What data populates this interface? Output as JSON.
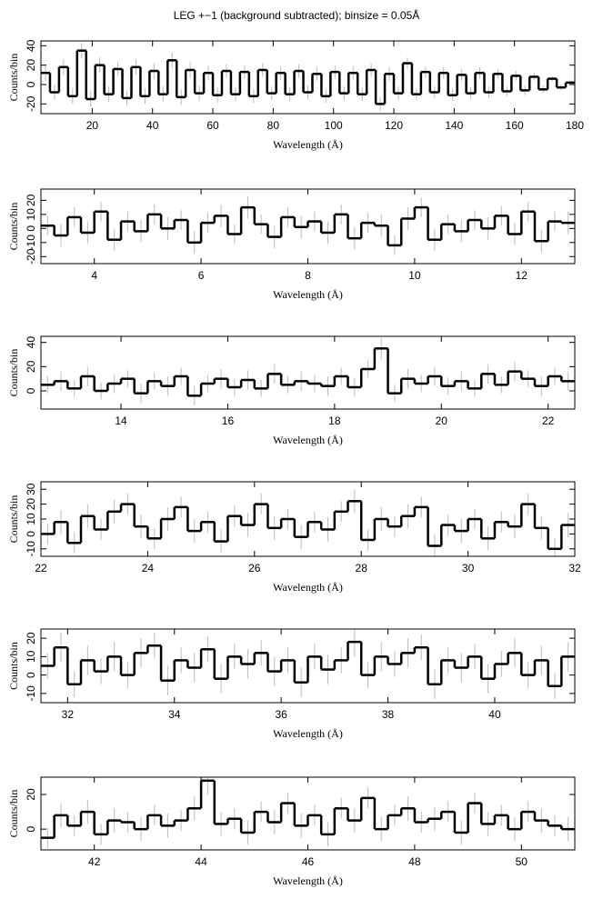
{
  "chart_data": [
    {
      "type": "histogram",
      "title": "LEG +−1 (background subtracted); binsize = 0.05Å",
      "xlabel": "Wavelength (Å)",
      "ylabel": "Counts/bin",
      "color": "#000000",
      "error_color": "#bbbbbb",
      "bins": [
        3,
        6,
        9,
        12,
        15,
        18,
        21,
        24,
        27,
        30,
        33,
        36,
        39,
        42,
        45,
        48,
        51,
        54,
        57,
        60,
        63,
        66,
        69,
        72,
        75,
        78,
        81,
        84,
        87,
        90,
        93,
        96,
        99,
        102,
        105,
        108,
        111,
        114,
        117,
        120,
        123,
        126,
        129,
        132,
        135,
        138,
        141,
        144,
        147,
        150,
        153,
        156,
        159,
        162,
        165,
        168,
        171,
        174,
        177,
        180
      ],
      "values": [
        12,
        -8,
        18,
        -12,
        35,
        -15,
        20,
        -10,
        16,
        -14,
        18,
        -12,
        14,
        -10,
        25,
        -13,
        15,
        -9,
        12,
        -11,
        14,
        -10,
        13,
        -12,
        15,
        -9,
        12,
        -10,
        14,
        -8,
        11,
        -12,
        13,
        -9,
        12,
        -10,
        15,
        -20,
        11,
        -9,
        22,
        -10,
        13,
        -8,
        12,
        -11,
        10,
        -9,
        12,
        -8,
        11,
        -7,
        9,
        -6,
        8,
        -5,
        6,
        -3,
        2
      ],
      "errors": [
        8,
        8,
        8,
        8,
        8,
        8,
        8,
        8,
        8,
        8,
        8,
        8,
        8,
        8,
        8,
        8,
        8,
        8,
        8,
        8,
        7,
        7,
        7,
        7,
        7,
        7,
        7,
        7,
        7,
        7,
        7,
        7,
        7,
        7,
        7,
        7,
        7,
        7,
        7,
        7,
        6,
        6,
        6,
        6,
        6,
        6,
        6,
        6,
        6,
        6,
        5,
        5,
        5,
        5,
        4,
        4,
        3,
        3,
        2
      ],
      "xlim": [
        3,
        180
      ],
      "ylim": [
        -30,
        45
      ],
      "xticks": [
        20,
        40,
        60,
        80,
        100,
        120,
        140,
        160,
        180
      ],
      "yticks": [
        -20,
        0,
        20,
        40
      ]
    },
    {
      "type": "histogram",
      "xlabel": "Wavelength (Å)",
      "ylabel": "Counts/bin",
      "color": "#000000",
      "error_color": "#bbbbbb",
      "bins": [
        3,
        3.25,
        3.5,
        3.75,
        4,
        4.25,
        4.5,
        4.75,
        5,
        5.25,
        5.5,
        5.75,
        6,
        6.25,
        6.5,
        6.75,
        7,
        7.25,
        7.5,
        7.75,
        8,
        8.25,
        8.5,
        8.75,
        9,
        9.25,
        9.5,
        9.75,
        10,
        10.25,
        10.5,
        10.75,
        11,
        11.25,
        11.5,
        11.75,
        12,
        12.25,
        12.5,
        12.75,
        13
      ],
      "values": [
        2,
        -5,
        8,
        -3,
        12,
        -8,
        5,
        -2,
        10,
        0,
        6,
        -10,
        4,
        9,
        -4,
        15,
        3,
        -6,
        8,
        1,
        5,
        -3,
        10,
        -7,
        4,
        2,
        -12,
        7,
        15,
        -8,
        3,
        -2,
        6,
        0,
        9,
        -4,
        12,
        -9,
        5,
        4
      ],
      "errors": [
        7,
        8,
        7,
        8,
        7,
        8,
        7,
        8,
        7,
        8,
        7,
        8,
        7,
        8,
        7,
        8,
        7,
        8,
        7,
        8,
        7,
        8,
        7,
        8,
        7,
        8,
        7,
        8,
        7,
        8,
        7,
        8,
        7,
        8,
        7,
        8,
        7,
        8,
        7,
        8
      ],
      "xlim": [
        3,
        13
      ],
      "ylim": [
        -25,
        28
      ],
      "xticks": [
        4,
        6,
        8,
        10,
        12
      ],
      "yticks": [
        -20,
        -10,
        0,
        10,
        20
      ]
    },
    {
      "type": "histogram",
      "xlabel": "Wavelength (Å)",
      "ylabel": "Counts/bin",
      "color": "#000000",
      "error_color": "#bbbbbb",
      "bins": [
        12.5,
        12.75,
        13,
        13.25,
        13.5,
        13.75,
        14,
        14.25,
        14.5,
        14.75,
        15,
        15.25,
        15.5,
        15.75,
        16,
        16.25,
        16.5,
        16.75,
        17,
        17.25,
        17.5,
        17.75,
        18,
        18.25,
        18.5,
        18.75,
        19,
        19.25,
        19.5,
        19.75,
        20,
        20.25,
        20.5,
        20.75,
        21,
        21.25,
        21.5,
        21.75,
        22,
        22.25,
        22.5
      ],
      "values": [
        5,
        8,
        2,
        12,
        0,
        6,
        10,
        -2,
        8,
        4,
        12,
        -4,
        6,
        10,
        3,
        9,
        2,
        14,
        5,
        8,
        6,
        4,
        12,
        3,
        18,
        35,
        -2,
        10,
        6,
        12,
        4,
        8,
        2,
        14,
        5,
        16,
        10,
        4,
        12,
        8
      ],
      "errors": [
        7,
        8,
        7,
        8,
        7,
        8,
        7,
        8,
        7,
        8,
        7,
        8,
        7,
        8,
        7,
        8,
        7,
        8,
        7,
        8,
        7,
        8,
        7,
        8,
        7,
        9,
        7,
        8,
        7,
        8,
        7,
        8,
        7,
        8,
        7,
        8,
        7,
        8,
        7,
        8
      ],
      "xlim": [
        12.5,
        22.5
      ],
      "ylim": [
        -15,
        45
      ],
      "xticks": [
        14,
        16,
        18,
        20,
        22
      ],
      "yticks": [
        0,
        20,
        40
      ]
    },
    {
      "type": "histogram",
      "xlabel": "Wavelength (Å)",
      "ylabel": "Counts/bin",
      "color": "#000000",
      "error_color": "#bbbbbb",
      "bins": [
        22,
        22.25,
        22.5,
        22.75,
        23,
        23.25,
        23.5,
        23.75,
        24,
        24.25,
        24.5,
        24.75,
        25,
        25.25,
        25.5,
        25.75,
        26,
        26.25,
        26.5,
        26.75,
        27,
        27.25,
        27.5,
        27.75,
        28,
        28.25,
        28.5,
        28.75,
        29,
        29.25,
        29.5,
        29.75,
        30,
        30.25,
        30.5,
        30.75,
        31,
        31.25,
        31.5,
        31.75,
        32
      ],
      "values": [
        0,
        8,
        -6,
        12,
        3,
        15,
        20,
        5,
        -3,
        10,
        18,
        2,
        8,
        -5,
        12,
        6,
        20,
        4,
        10,
        -2,
        8,
        3,
        15,
        22,
        -4,
        10,
        5,
        12,
        18,
        -8,
        6,
        2,
        10,
        -3,
        8,
        5,
        20,
        4,
        -10,
        6
      ],
      "errors": [
        7,
        8,
        7,
        8,
        7,
        8,
        7,
        8,
        7,
        8,
        7,
        8,
        7,
        8,
        7,
        8,
        7,
        8,
        7,
        8,
        7,
        8,
        7,
        8,
        7,
        8,
        7,
        8,
        7,
        8,
        7,
        8,
        7,
        8,
        7,
        8,
        7,
        8,
        7,
        8
      ],
      "xlim": [
        22,
        32
      ],
      "ylim": [
        -15,
        35
      ],
      "xticks": [
        22,
        24,
        26,
        28,
        30,
        32
      ],
      "yticks": [
        -10,
        0,
        10,
        20,
        30
      ]
    },
    {
      "type": "histogram",
      "xlabel": "Wavelength (Å)",
      "ylabel": "Counts/bin",
      "color": "#000000",
      "error_color": "#bbbbbb",
      "bins": [
        31.5,
        31.75,
        32,
        32.25,
        32.5,
        32.75,
        33,
        33.25,
        33.5,
        33.75,
        34,
        34.25,
        34.5,
        34.75,
        35,
        35.25,
        35.5,
        35.75,
        36,
        36.25,
        36.5,
        36.75,
        37,
        37.25,
        37.5,
        37.75,
        38,
        38.25,
        38.5,
        38.75,
        39,
        39.25,
        39.5,
        39.75,
        40,
        40.25,
        40.5,
        40.75,
        41,
        41.25,
        41.5
      ],
      "values": [
        5,
        15,
        -5,
        8,
        2,
        10,
        0,
        12,
        16,
        -3,
        8,
        4,
        14,
        -2,
        10,
        6,
        12,
        2,
        8,
        -4,
        10,
        3,
        8,
        18,
        0,
        10,
        6,
        12,
        15,
        -5,
        8,
        4,
        10,
        -2,
        6,
        12,
        0,
        8,
        -6,
        10
      ],
      "errors": [
        7,
        8,
        7,
        8,
        7,
        8,
        7,
        8,
        7,
        8,
        7,
        8,
        7,
        8,
        7,
        8,
        7,
        8,
        7,
        8,
        7,
        8,
        7,
        8,
        7,
        8,
        7,
        8,
        7,
        8,
        7,
        8,
        7,
        8,
        7,
        8,
        7,
        8,
        7,
        8
      ],
      "xlim": [
        31.5,
        41.5
      ],
      "ylim": [
        -15,
        25
      ],
      "xticks": [
        32,
        34,
        36,
        38,
        40
      ],
      "yticks": [
        -10,
        0,
        10,
        20
      ]
    },
    {
      "type": "histogram",
      "xlabel": "Wavelength (Å)",
      "ylabel": "Counts/bin",
      "color": "#000000",
      "error_color": "#bbbbbb",
      "bins": [
        41,
        41.25,
        41.5,
        41.75,
        42,
        42.25,
        42.5,
        42.75,
        43,
        43.25,
        43.5,
        43.75,
        44,
        44.25,
        44.5,
        44.75,
        45,
        45.25,
        45.5,
        45.75,
        46,
        46.25,
        46.5,
        46.75,
        47,
        47.25,
        47.5,
        47.75,
        48,
        48.25,
        48.5,
        48.75,
        49,
        49.25,
        49.5,
        49.75,
        50,
        50.25,
        50.5,
        50.75,
        51
      ],
      "values": [
        -5,
        8,
        2,
        10,
        -3,
        5,
        4,
        0,
        8,
        2,
        5,
        12,
        28,
        3,
        6,
        -2,
        10,
        4,
        15,
        2,
        8,
        -3,
        12,
        5,
        18,
        0,
        8,
        12,
        4,
        6,
        10,
        -2,
        15,
        3,
        8,
        0,
        10,
        5,
        2,
        0
      ],
      "errors": [
        6,
        7,
        6,
        7,
        6,
        7,
        6,
        7,
        6,
        7,
        6,
        7,
        8,
        7,
        6,
        7,
        6,
        7,
        6,
        7,
        6,
        7,
        6,
        7,
        6,
        7,
        6,
        7,
        6,
        7,
        6,
        7,
        6,
        7,
        6,
        7,
        6,
        7,
        6,
        7
      ],
      "xlim": [
        41,
        51
      ],
      "ylim": [
        -12,
        30
      ],
      "xticks": [
        42,
        44,
        46,
        48,
        50
      ],
      "yticks": [
        0,
        20
      ]
    }
  ]
}
